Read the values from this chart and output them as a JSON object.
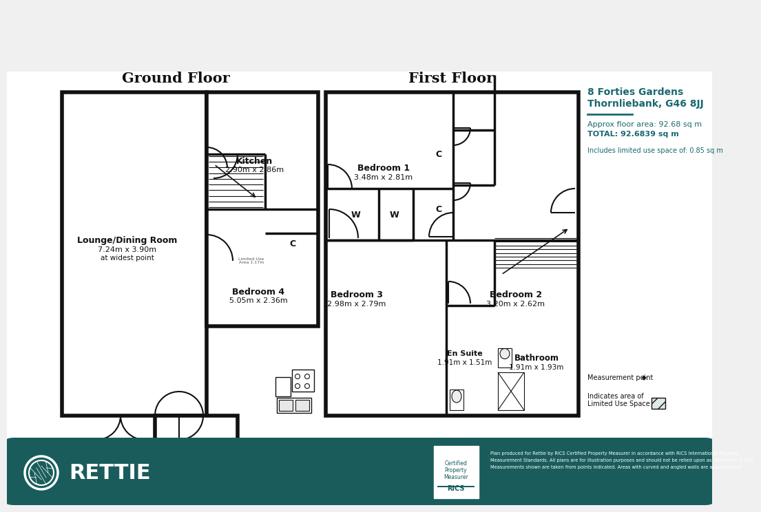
{
  "bg_color": "#f0f0f0",
  "wall_color": "#111111",
  "teal_color": "#1a6870",
  "footer_teal": "#1a5c5c",
  "ground_floor_label": "Ground Floor",
  "first_floor_label": "First Floor",
  "address_line1": "8 Forties Gardens",
  "address_line2": "Thornliebank, G46 8JJ",
  "approx_area": "Approx floor area: 92.68 sq m",
  "total_area": "TOTAL: 92.6839 sq m",
  "limited_use": "Includes limited use space of: 0.85 sq m",
  "rettie_text": "RETTIE",
  "measurement_point": "Measurement point",
  "limited_use_legend": "Indicates area of\nLimited Use Space",
  "footer_small": "Plan produced for Rettie by RICS Certified Property Measurer in accordance with RICS International Property\nMeasurement Standards. All plans are for illustration purposes and should not be relied upon as statement of fact.\nMeasurements shown are taken from points indicated. Areas with curved and angled walls are approximated"
}
